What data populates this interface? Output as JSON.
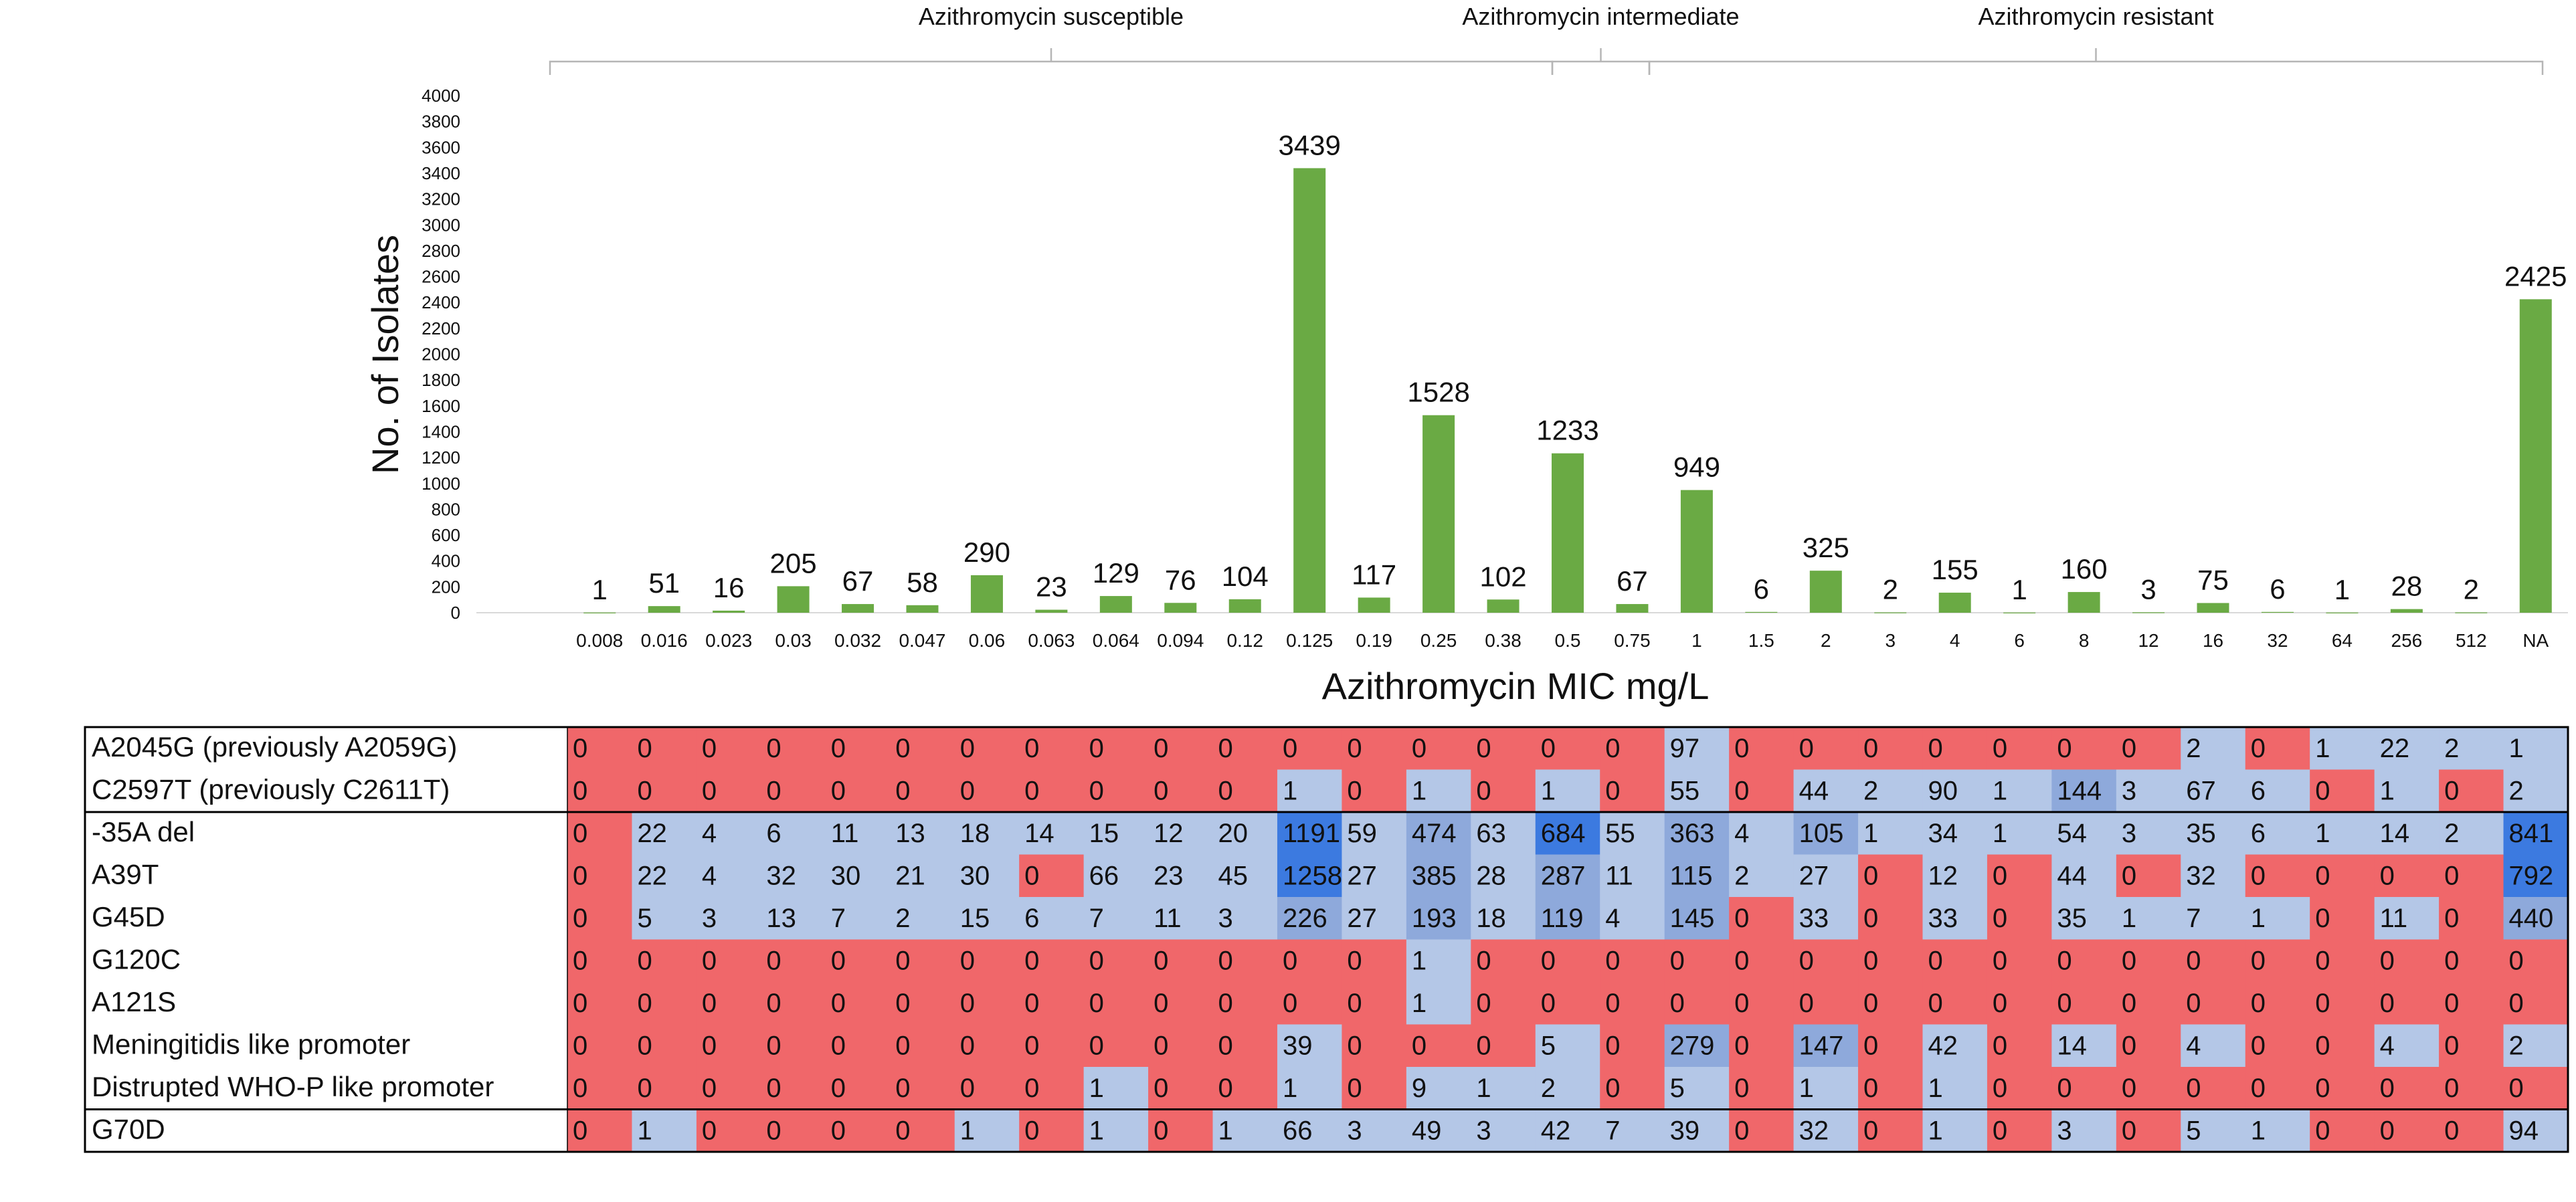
{
  "chart_data": [
    {
      "type": "bar",
      "ylabel": "No. of Isolates",
      "xlabel": "Azithromycin MIC mg/L",
      "ylim": [
        0,
        4000
      ],
      "ytick_step": 200,
      "bar_color": "#6aaa44",
      "categories": [
        "0.008",
        "0.016",
        "0.023",
        "0.03",
        "0.032",
        "0.047",
        "0.06",
        "0.063",
        "0.064",
        "0.094",
        "0.12",
        "0.125",
        "0.19",
        "0.25",
        "0.38",
        "0.5",
        "0.75",
        "1",
        "1.5",
        "2",
        "3",
        "4",
        "6",
        "8",
        "12",
        "16",
        "32",
        "64",
        "256",
        "512",
        "NA"
      ],
      "values": [
        1,
        51,
        16,
        205,
        67,
        58,
        290,
        23,
        129,
        76,
        104,
        3439,
        117,
        1528,
        102,
        1233,
        67,
        949,
        6,
        325,
        2,
        155,
        1,
        160,
        3,
        75,
        6,
        1,
        28,
        2,
        2425
      ],
      "groups": [
        {
          "label": "Azithromycin susceptible",
          "start": 0,
          "end": 15
        },
        {
          "label": "Azithromycin intermediate",
          "start": 15,
          "end": 16
        },
        {
          "label": "Azithromycin resistant",
          "start": 17,
          "end": 30
        }
      ]
    },
    {
      "type": "heatmap",
      "colors": {
        "zero": "#f0676a",
        "low": "#b4c7e7",
        "mid": "#8ea9db",
        "high": "#3c7ae0"
      },
      "rows": [
        {
          "label": "A2045G (previously A2059G)",
          "values": [
            0,
            0,
            0,
            0,
            0,
            0,
            0,
            0,
            0,
            0,
            0,
            0,
            0,
            0,
            0,
            0,
            0,
            97,
            0,
            0,
            0,
            0,
            0,
            0,
            0,
            2,
            0,
            1,
            22,
            2,
            1
          ]
        },
        {
          "label": "C2597T (previously C2611T)",
          "values": [
            0,
            0,
            0,
            0,
            0,
            0,
            0,
            0,
            0,
            0,
            0,
            1,
            0,
            1,
            0,
            1,
            0,
            55,
            0,
            44,
            2,
            90,
            1,
            144,
            3,
            67,
            6,
            0,
            1,
            0,
            2
          ]
        },
        {
          "label": " -35A del",
          "values": [
            0,
            22,
            4,
            6,
            11,
            13,
            18,
            14,
            15,
            12,
            20,
            1191,
            59,
            474,
            63,
            684,
            55,
            363,
            4,
            105,
            1,
            34,
            1,
            54,
            3,
            35,
            6,
            1,
            14,
            2,
            841
          ]
        },
        {
          "label": "A39T",
          "values": [
            0,
            22,
            4,
            32,
            30,
            21,
            30,
            0,
            66,
            23,
            45,
            1258,
            27,
            385,
            28,
            287,
            11,
            115,
            2,
            27,
            0,
            12,
            0,
            44,
            0,
            32,
            0,
            0,
            0,
            0,
            792
          ]
        },
        {
          "label": "G45D",
          "values": [
            0,
            5,
            3,
            13,
            7,
            2,
            15,
            6,
            7,
            11,
            3,
            226,
            27,
            193,
            18,
            119,
            4,
            145,
            0,
            33,
            0,
            33,
            0,
            35,
            1,
            7,
            1,
            0,
            11,
            0,
            440
          ]
        },
        {
          "label": "G120C",
          "values": [
            0,
            0,
            0,
            0,
            0,
            0,
            0,
            0,
            0,
            0,
            0,
            0,
            0,
            1,
            0,
            0,
            0,
            0,
            0,
            0,
            0,
            0,
            0,
            0,
            0,
            0,
            0,
            0,
            0,
            0,
            0
          ]
        },
        {
          "label": "A121S",
          "values": [
            0,
            0,
            0,
            0,
            0,
            0,
            0,
            0,
            0,
            0,
            0,
            0,
            0,
            1,
            0,
            0,
            0,
            0,
            0,
            0,
            0,
            0,
            0,
            0,
            0,
            0,
            0,
            0,
            0,
            0,
            0
          ]
        },
        {
          "label": "Meningitidis like promoter",
          "values": [
            0,
            0,
            0,
            0,
            0,
            0,
            0,
            0,
            0,
            0,
            0,
            39,
            0,
            0,
            0,
            5,
            0,
            279,
            0,
            147,
            0,
            42,
            0,
            14,
            0,
            4,
            0,
            0,
            4,
            0,
            2
          ]
        },
        {
          "label": "Distrupted WHO-P like promoter",
          "values": [
            0,
            0,
            0,
            0,
            0,
            0,
            0,
            0,
            1,
            0,
            0,
            1,
            0,
            9,
            1,
            2,
            0,
            5,
            0,
            1,
            0,
            1,
            0,
            0,
            0,
            0,
            0,
            0,
            0,
            0,
            0
          ]
        },
        {
          "label": "G70D",
          "values": [
            0,
            1,
            0,
            0,
            0,
            0,
            1,
            0,
            1,
            0,
            1,
            66,
            3,
            49,
            3,
            42,
            7,
            39,
            0,
            32,
            0,
            1,
            0,
            3,
            0,
            5,
            1,
            0,
            0,
            0,
            94
          ]
        }
      ]
    }
  ]
}
